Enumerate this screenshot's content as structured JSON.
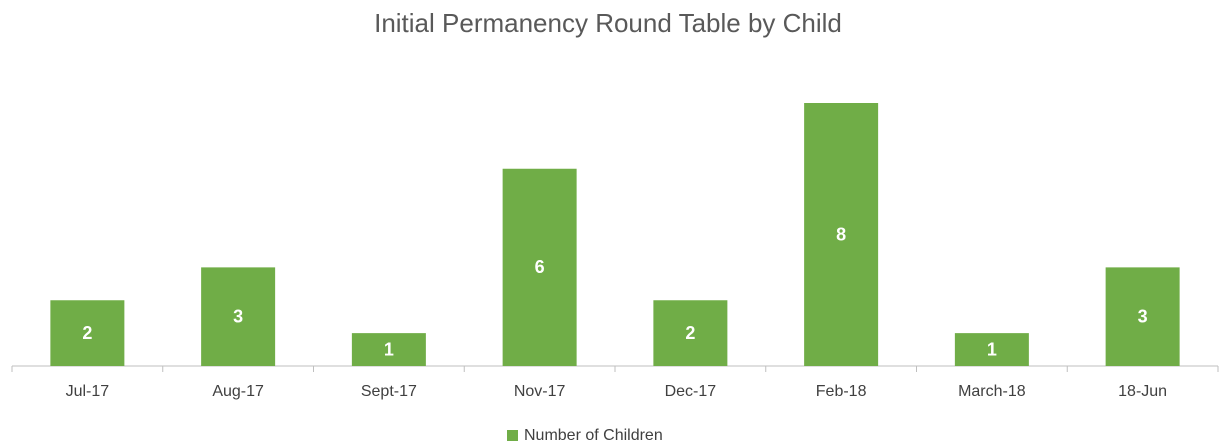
{
  "chart_data": {
    "type": "bar",
    "title": "Initial Permanency Round Table by Child",
    "categories": [
      "Jul-17",
      "Aug-17",
      "Sept-17",
      "Nov-17",
      "Dec-17",
      "Feb-18",
      "March-18",
      "18-Jun"
    ],
    "series": [
      {
        "name": "Number of Children",
        "color": "#70ad47",
        "values": [
          2,
          3,
          1,
          6,
          2,
          8,
          1,
          3
        ]
      }
    ],
    "legend": "bottom"
  }
}
